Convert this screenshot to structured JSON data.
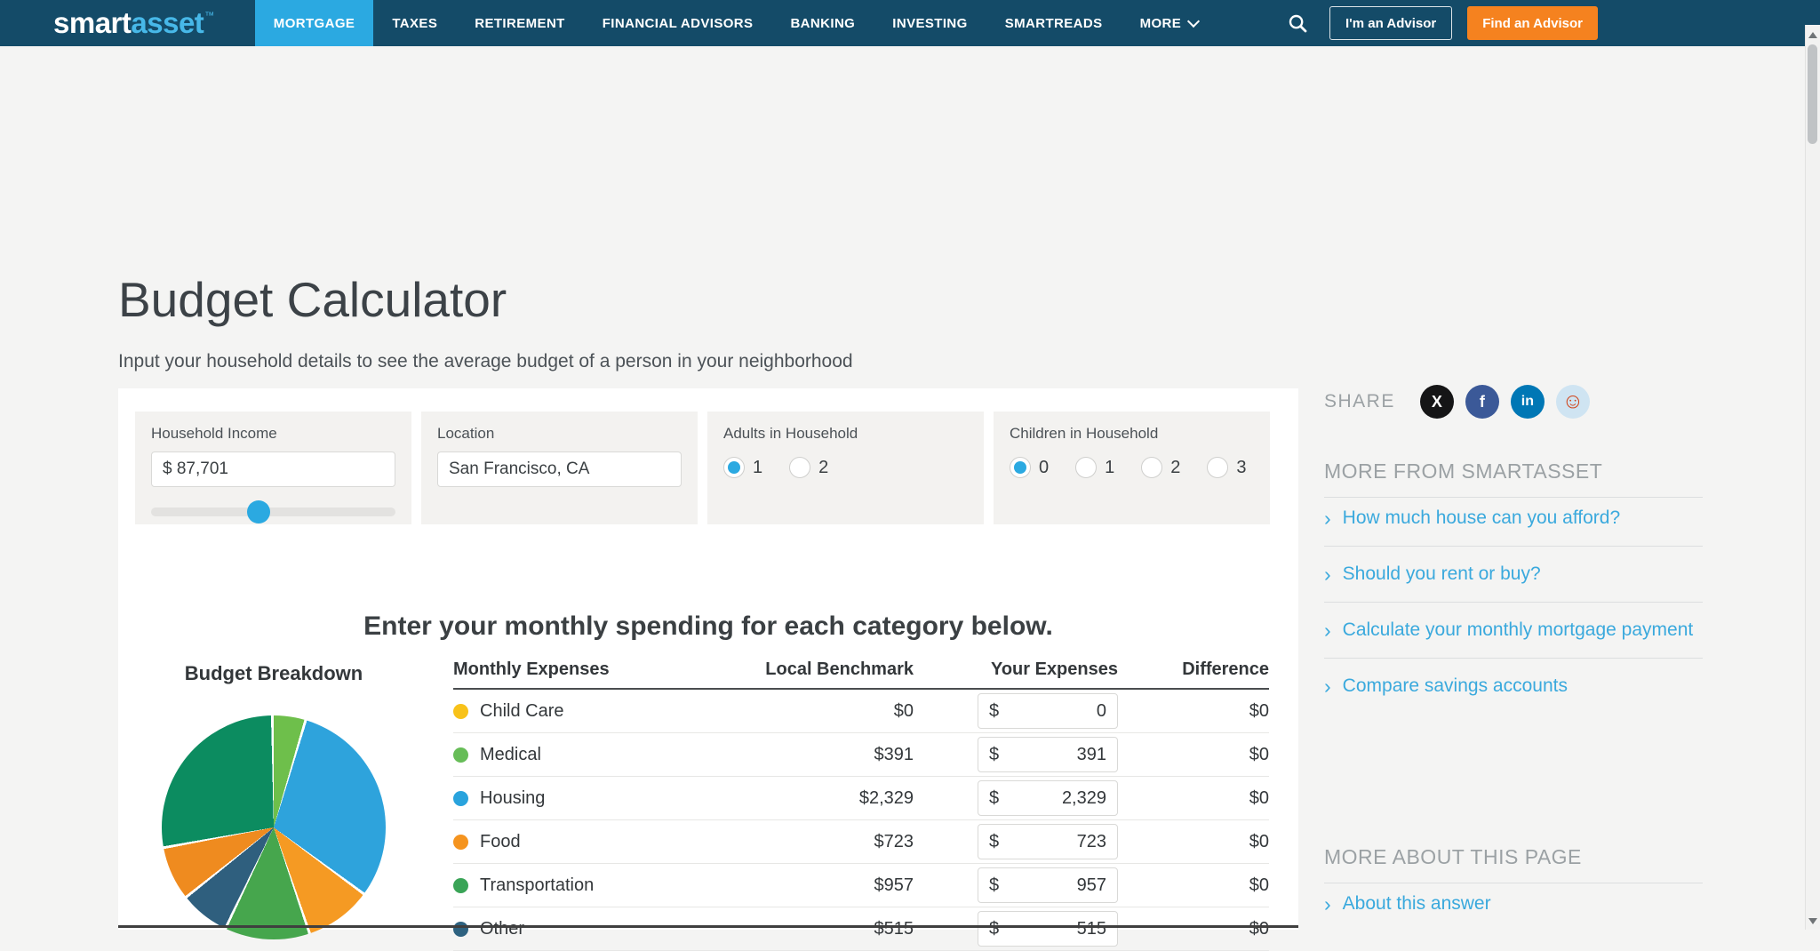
{
  "nav": {
    "logo": {
      "part1": "smart",
      "part2": "asset",
      "tm": "™"
    },
    "items": [
      {
        "label": "MORTGAGE",
        "active": true
      },
      {
        "label": "TAXES",
        "active": false
      },
      {
        "label": "RETIREMENT",
        "active": false
      },
      {
        "label": "FINANCIAL ADVISORS",
        "active": false
      },
      {
        "label": "BANKING",
        "active": false
      },
      {
        "label": "INVESTING",
        "active": false
      },
      {
        "label": "SMARTREADS",
        "active": false
      },
      {
        "label": "MORE",
        "active": false,
        "chevron": true
      }
    ],
    "im_advisor": "I'm an Advisor",
    "find_advisor": "Find an Advisor",
    "colors": {
      "bar": "#144b68",
      "active_tab": "#2ba9e1",
      "cta_orange": "#f5821f",
      "logo_accent": "#47b8e8"
    }
  },
  "page": {
    "title": "Budget Calculator",
    "subtitle": "Input your household details to see the average budget of a person in your neighborhood",
    "spending_heading": "Enter your monthly spending for each category below."
  },
  "form": {
    "household_income": {
      "label": "Household Income",
      "value": "$ 87,701",
      "slider_pct": 44
    },
    "location": {
      "label": "Location",
      "value": "San Francisco, CA"
    },
    "adults": {
      "label": "Adults in Household",
      "options": [
        "1",
        "2"
      ],
      "selected": "1"
    },
    "children": {
      "label": "Children in Household",
      "options": [
        "0",
        "1",
        "2",
        "3"
      ],
      "selected": "0"
    }
  },
  "table": {
    "headers": [
      "Monthly Expenses",
      "Local Benchmark",
      "Your Expenses",
      "Difference"
    ],
    "currency_symbol": "$",
    "rows": [
      {
        "category": "Child Care",
        "dot_color": "#f8c21a",
        "benchmark": "$0",
        "expense": "0",
        "difference": "$0"
      },
      {
        "category": "Medical",
        "dot_color": "#67bd58",
        "benchmark": "$391",
        "expense": "391",
        "difference": "$0"
      },
      {
        "category": "Housing",
        "dot_color": "#29a3dd",
        "benchmark": "$2,329",
        "expense": "2,329",
        "difference": "$0"
      },
      {
        "category": "Food",
        "dot_color": "#f5941f",
        "benchmark": "$723",
        "expense": "723",
        "difference": "$0"
      },
      {
        "category": "Transportation",
        "dot_color": "#3aa457",
        "benchmark": "$957",
        "expense": "957",
        "difference": "$0"
      },
      {
        "category": "Other",
        "dot_color": "#2e6280",
        "benchmark": "$515",
        "expense": "515",
        "difference": "$0"
      }
    ]
  },
  "chart_data": {
    "type": "pie",
    "title": "Budget Breakdown",
    "direction": "clockwise",
    "start_angle_deg": 0,
    "slices": [
      {
        "label": "Child Care",
        "color": "#f8c21a",
        "pct": 0
      },
      {
        "label": "Medical",
        "color": "#6ebf4b",
        "pct": 4.8
      },
      {
        "label": "Housing",
        "color": "#2ea3dc",
        "pct": 30.5
      },
      {
        "label": "Food",
        "color": "#f59a23",
        "pct": 9.7
      },
      {
        "label": "Transportation",
        "color": "#46a64d",
        "pct": 12.3
      },
      {
        "label": "Other",
        "color": "#2f5f7e",
        "pct": 7.2
      },
      {
        "label": "",
        "color": "#ef8b1f",
        "pct": 7.8
      },
      {
        "label": "",
        "color": "#0c8c60",
        "pct": 27.7
      }
    ]
  },
  "sidebar": {
    "share_label": "SHARE",
    "social": [
      {
        "name": "x-icon",
        "bg": "#151516",
        "fg": "#ffffff",
        "glyph": "X"
      },
      {
        "name": "facebook-icon",
        "bg": "#3b5998",
        "fg": "#ffffff",
        "glyph": "f"
      },
      {
        "name": "linkedin-icon",
        "bg": "#0077b5",
        "fg": "#ffffff",
        "glyph": "in"
      },
      {
        "name": "reddit-icon",
        "bg": "#cfe4f2",
        "fg": "#d0451b",
        "glyph": "☺"
      }
    ],
    "more_heading": "MORE FROM SMARTASSET",
    "links": [
      "How much house can you afford?",
      "Should you rent or buy?",
      "Calculate your monthly mortgage payment",
      "Compare savings accounts"
    ],
    "about_heading": "MORE ABOUT THIS PAGE",
    "about_links": [
      "About this answer"
    ]
  }
}
